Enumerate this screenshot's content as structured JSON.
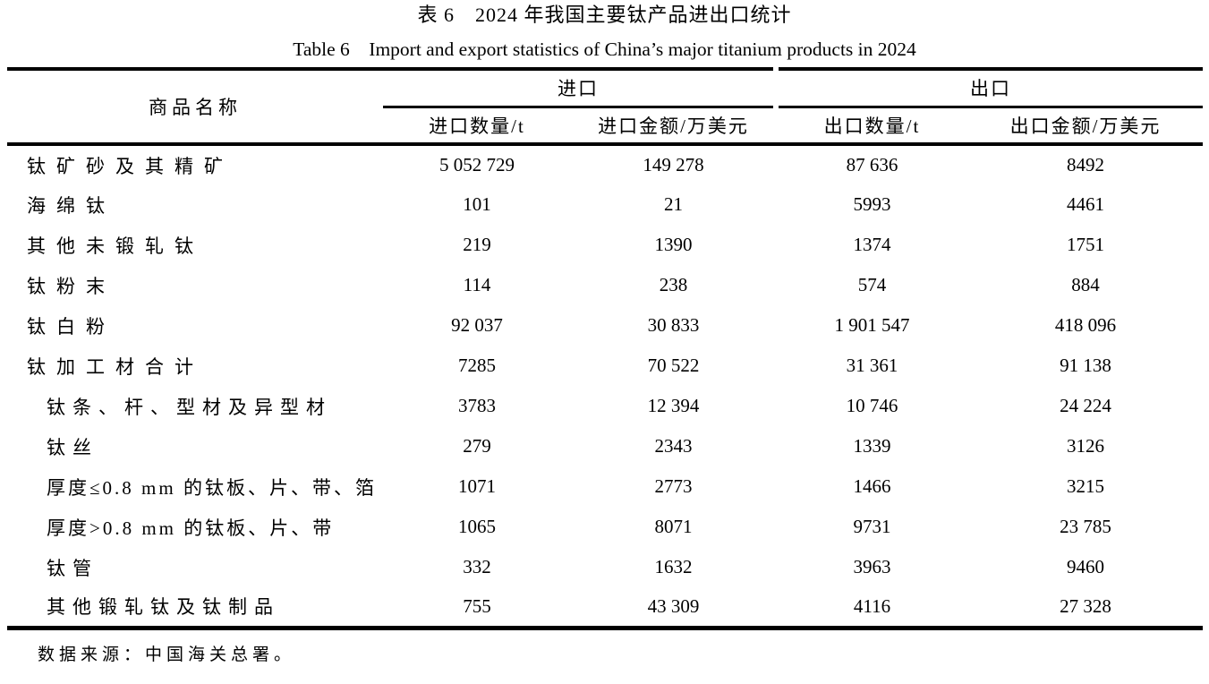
{
  "captions": {
    "zh": "表 6 2024 年我国主要钛产品进出口统计",
    "en": "Table 6 Import and export statistics of China’s major titanium products in 2024"
  },
  "table": {
    "product_header": "商品名称",
    "group_import": "进口",
    "group_export": "出口",
    "subheaders": {
      "import_qty": "进口数量/t",
      "import_value": "进口金额/万美元",
      "export_qty": "出口数量/t",
      "export_value": "出口金额/万美元"
    },
    "rows": [
      {
        "label": "钛矿砂及其精矿",
        "import_qty": "5 052 729",
        "import_value": "149 278",
        "export_qty": "87 636",
        "export_value": "8492"
      },
      {
        "label": "海绵钛",
        "import_qty": "101",
        "import_value": "21",
        "export_qty": "5993",
        "export_value": "4461"
      },
      {
        "label": "其他未锻轧钛",
        "import_qty": "219",
        "import_value": "1390",
        "export_qty": "1374",
        "export_value": "1751"
      },
      {
        "label": "钛粉末",
        "import_qty": "114",
        "import_value": "238",
        "export_qty": "574",
        "export_value": "884"
      },
      {
        "label": "钛白粉",
        "import_qty": "92 037",
        "import_value": "30 833",
        "export_qty": "1 901 547",
        "export_value": "418 096"
      },
      {
        "label": "钛加工材合计",
        "import_qty": "7285",
        "import_value": "70 522",
        "export_qty": "31 361",
        "export_value": "91 138"
      },
      {
        "label": "钛条、杆、型材及异型材",
        "import_qty": "3783",
        "import_value": "12 394",
        "export_qty": "10 746",
        "export_value": "24 224"
      },
      {
        "label": "钛丝",
        "import_qty": "279",
        "import_value": "2343",
        "export_qty": "1339",
        "export_value": "3126"
      },
      {
        "label": "厚度≤0.8 mm 的钛板、片、带、箔",
        "import_qty": "1071",
        "import_value": "2773",
        "export_qty": "1466",
        "export_value": "3215"
      },
      {
        "label": "厚度>0.8 mm 的钛板、片、带",
        "import_qty": "1065",
        "import_value": "8071",
        "export_qty": "9731",
        "export_value": "23 785"
      },
      {
        "label": "钛管",
        "import_qty": "332",
        "import_value": "1632",
        "export_qty": "3963",
        "export_value": "9460"
      },
      {
        "label": "其他锻轧钛及钛制品",
        "import_qty": "755",
        "import_value": "43 309",
        "export_qty": "4116",
        "export_value": "27 328"
      }
    ]
  },
  "footer": {
    "source_note": "数据来源：中国海关总署。"
  }
}
